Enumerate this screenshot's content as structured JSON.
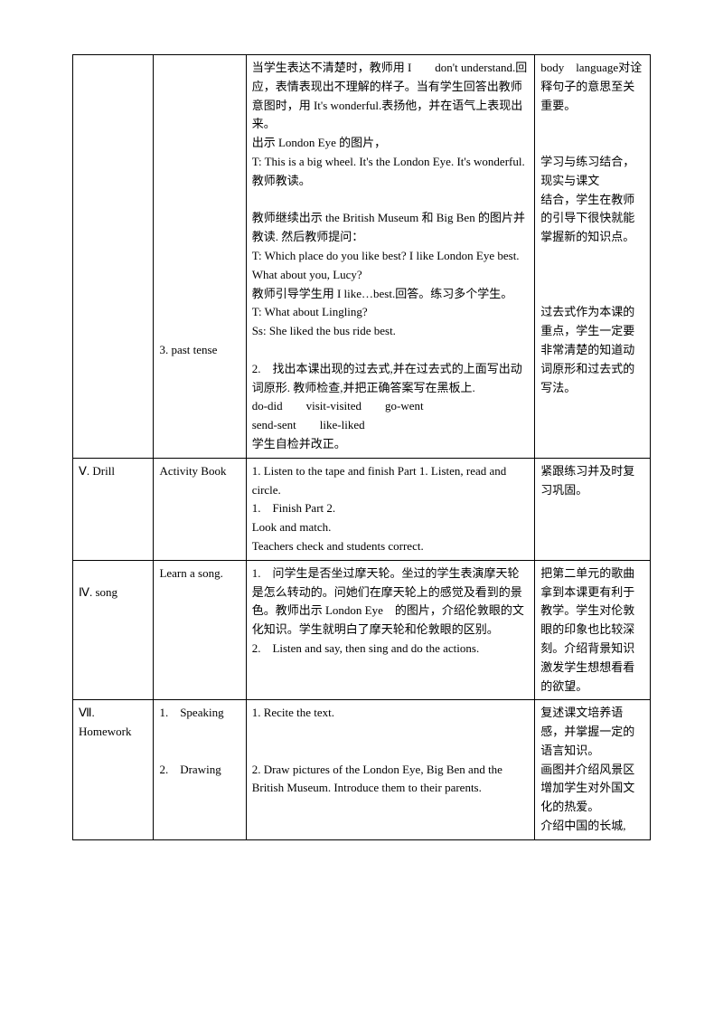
{
  "rows": [
    {
      "col1": "",
      "col2": "\n\n\n\n\n\n\n\n\n\n\n\n\n\n\n3. past tense",
      "col3": [
        "当学生表达不清楚时，教师用 I　　don't understand.回应，表情表现出不理解的样子。当有学生回答出教师意图时，用 It's wonderful.表扬他，并在语气上表现出来。",
        "出示 London Eye 的图片，",
        "T: This is a big wheel. It's the London Eye. It's wonderful. 教师教读。",
        "",
        "教师继续出示 the British Museum 和 Big Ben 的图片并教读. 然后教师提问：",
        "T: Which place do you like best? I like London Eye best. What about you, Lucy?",
        "教师引导学生用 I like…best.回答。练习多个学生。",
        "T: What about Lingling?",
        "Ss: She liked the bus ride best.",
        "",
        "2.　找出本课出现的过去式,并在过去式的上面写出动词原形. 教师检查,并把正确答案写在黑板上.",
        "do-did　　visit-visited　　go-went",
        "send-sent　　like-liked",
        "学生自检并改正。"
      ],
      "col4": [
        "body　language对诠释句子的意思至关重要。",
        "",
        "",
        "学习与练习结合，现实与课文",
        "结合，学生在教师的引导下很快就能掌握新的知识点。",
        "",
        "",
        "",
        "过去式作为本课的重点，学生一定要非常清楚的知道动词原形和过去式的写法。"
      ]
    },
    {
      "col1": "Ⅴ. Drill",
      "col2": "Activity Book",
      "col3": [
        "1. Listen to the tape and finish Part 1. Listen, read and circle.",
        "1.　Finish Part 2.",
        "Look and match.",
        "Teachers check and students correct."
      ],
      "col4": [
        "紧跟练习并及时复习巩固。"
      ]
    },
    {
      "col1": "\nⅣ. song",
      "col2": "Learn a song.",
      "col3": [
        "1.　问学生是否坐过摩天轮。坐过的学生表演摩天轮是怎么转动的。问她们在摩天轮上的感觉及看到的景色。教师出示 London Eye　的图片，介绍伦敦眼的文化知识。学生就明白了摩天轮和伦敦眼的区别。",
        "2.　Listen and say, then sing and do the actions."
      ],
      "col4": [
        "把第二单元的歌曲拿到本课更有利于教学。学生对伦敦眼的印象也比较深刻。介绍背景知识激发学生想想看看的欲望。"
      ]
    },
    {
      "col1": "Ⅶ. Homework",
      "col2": "1.　Speaking\n\n\n2.　Drawing",
      "col3": [
        "1. Recite the text.",
        "",
        "",
        "2. Draw pictures of the London Eye, Big Ben and the British Museum. Introduce them to their parents."
      ],
      "col4": [
        "复述课文培养语感，并掌握一定的语言知识。",
        "画图并介绍风景区增加学生对外国文化的热爱。",
        "介绍中国的长城,"
      ]
    }
  ]
}
